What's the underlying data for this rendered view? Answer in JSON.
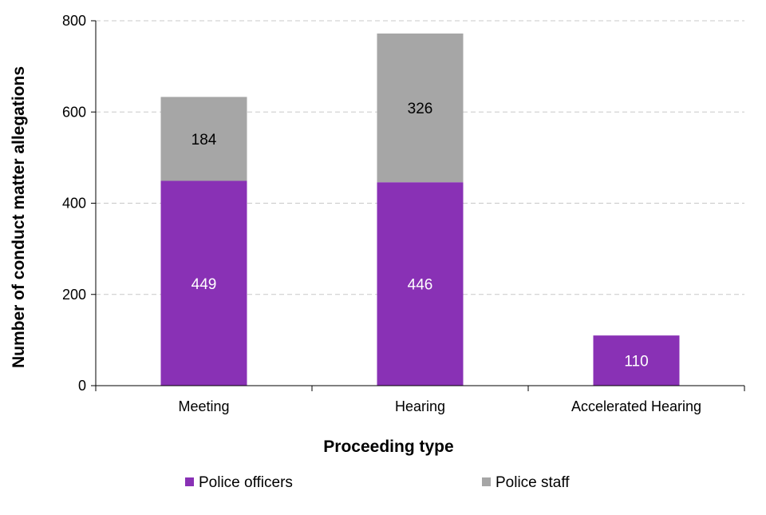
{
  "chart_data": {
    "type": "bar",
    "stacked": true,
    "categories": [
      "Meeting",
      "Hearing",
      "Accelerated Hearing"
    ],
    "series": [
      {
        "name": "Police officers",
        "values": [
          449,
          446,
          110
        ],
        "color": "#8931b5",
        "label_color": "#ffffff"
      },
      {
        "name": "Police staff",
        "values": [
          184,
          326,
          null
        ],
        "color": "#a6a6a6",
        "label_color": "#000000"
      }
    ],
    "xlabel": "Proceeding type",
    "ylabel": "Number of conduct matter allegations",
    "ylim": [
      0,
      800
    ],
    "yticks": [
      0,
      200,
      400,
      600,
      800
    ],
    "grid": true,
    "legend_position": "bottom"
  }
}
